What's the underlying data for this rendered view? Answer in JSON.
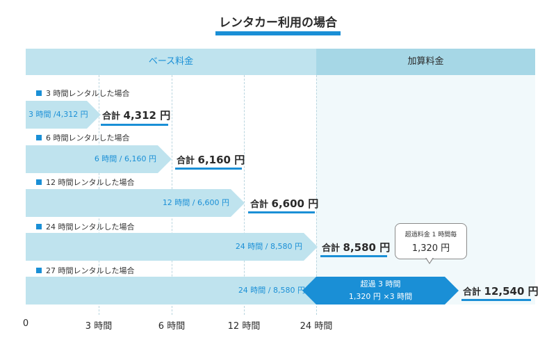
{
  "title": "レンタカー利用の場合",
  "headers": {
    "base": "ベース料金",
    "extra": "加算料金"
  },
  "rows": [
    {
      "label": "3 時間レンタルした場合",
      "bar": "3 時間 /4,312 円",
      "total_prefix": "合計",
      "total": "4,312 円"
    },
    {
      "label": "6 時間レンタルした場合",
      "bar": "6 時間 / 6,160 円",
      "total_prefix": "合計",
      "total": "6,160 円"
    },
    {
      "label": "12 時間レンタルした場合",
      "bar": "12 時間 / 6,600 円",
      "total_prefix": "合計",
      "total": "6,600 円"
    },
    {
      "label": "24 時間レンタルした場合",
      "bar": "24 時間 / 8,580 円",
      "total_prefix": "合計",
      "total": "8,580 円"
    },
    {
      "label": "27 時間レンタルした場合",
      "bar": "24 時間 / 8,580 円",
      "total_prefix": "合計",
      "total": "12,540 円"
    }
  ],
  "overage": {
    "line1": "超過 3 時間",
    "line2": "1,320 円 ×3 時間"
  },
  "callout": {
    "line1": "超過料金 1 時間毎",
    "line2": "1,320 円"
  },
  "axis": [
    "0",
    "3 時間",
    "6 時間",
    "12 時間",
    "24 時間"
  ],
  "colors": {
    "accent": "#1a8fd6",
    "bar": "#bfe3ee",
    "header_extra": "#a6d7e6"
  }
}
